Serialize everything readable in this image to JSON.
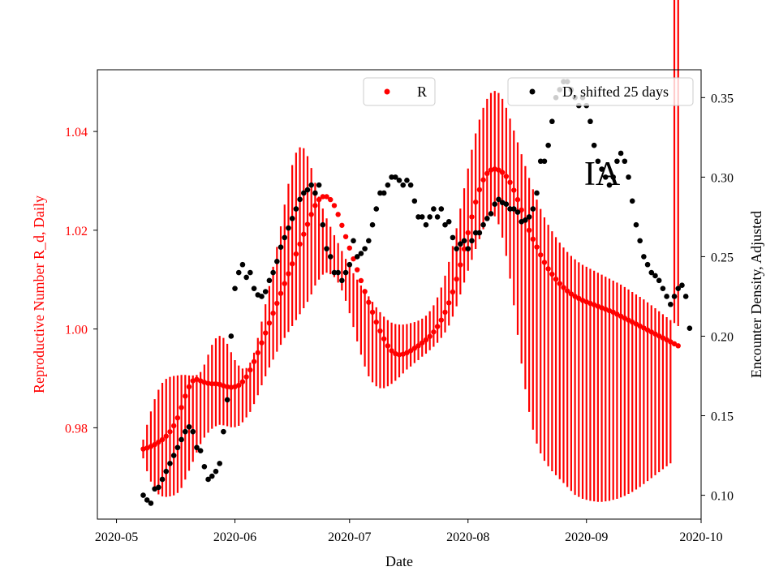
{
  "chart_data": {
    "type": "scatter",
    "title": "",
    "xlabel": "Date",
    "ylabel_left": "Reproductive Number R_d, Daily",
    "ylabel_right": "Encounter Density, Adjusted",
    "annotation": "IA",
    "colors": {
      "r": "#ff0000",
      "d": "#000000",
      "axis": "#000000"
    },
    "x_domain_days": [
      -5,
      153
    ],
    "x_ticks": [
      {
        "day": 0,
        "label": "2020-05"
      },
      {
        "day": 31,
        "label": "2020-06"
      },
      {
        "day": 61,
        "label": "2020-07"
      },
      {
        "day": 92,
        "label": "2020-08"
      },
      {
        "day": 123,
        "label": "2020-09"
      },
      {
        "day": 153,
        "label": "2020-10"
      }
    ],
    "y_left_range": [
      0.9615,
      1.0525
    ],
    "y_left_ticks": [
      {
        "value": 0.98,
        "label": "0.98"
      },
      {
        "value": 1.0,
        "label": "1.00"
      },
      {
        "value": 1.02,
        "label": "1.02"
      },
      {
        "value": 1.04,
        "label": "1.04"
      }
    ],
    "y_right_range": [
      0.085,
      0.3675
    ],
    "y_right_ticks": [
      {
        "value": 0.1,
        "label": "0.10"
      },
      {
        "value": 0.15,
        "label": "0.15"
      },
      {
        "value": 0.2,
        "label": "0.20"
      },
      {
        "value": 0.25,
        "label": "0.25"
      },
      {
        "value": 0.3,
        "label": "0.30"
      },
      {
        "value": 0.35,
        "label": "0.35"
      }
    ],
    "legend": [
      {
        "label": "R",
        "color": "#ff0000",
        "location": "upper-center"
      },
      {
        "label": "D, shifted 25 days",
        "color": "#000000",
        "location": "upper-right"
      }
    ],
    "series_R": {
      "name": "R",
      "axis": "left",
      "x_days": [
        7,
        8,
        9,
        10,
        11,
        12,
        13,
        14,
        15,
        16,
        17,
        18,
        19,
        20,
        21,
        22,
        23,
        24,
        25,
        26,
        27,
        28,
        29,
        30,
        31,
        32,
        33,
        34,
        35,
        36,
        37,
        38,
        39,
        40,
        41,
        42,
        43,
        44,
        45,
        46,
        47,
        48,
        49,
        50,
        51,
        52,
        53,
        54,
        55,
        56,
        57,
        58,
        59,
        60,
        61,
        62,
        63,
        64,
        65,
        66,
        67,
        68,
        69,
        70,
        71,
        72,
        73,
        74,
        75,
        76,
        77,
        78,
        79,
        80,
        81,
        82,
        83,
        84,
        85,
        86,
        87,
        88,
        89,
        90,
        91,
        92,
        93,
        94,
        95,
        96,
        97,
        98,
        99,
        100,
        101,
        102,
        103,
        104,
        105,
        106,
        107,
        108,
        109,
        110,
        111,
        112,
        113,
        114,
        115,
        116,
        117,
        118,
        119,
        120,
        121,
        122,
        123,
        124,
        125,
        126,
        127,
        128,
        129,
        130,
        131,
        132,
        133,
        134,
        135,
        136,
        137,
        138,
        139,
        140,
        141,
        142,
        143,
        144,
        145,
        146,
        147
      ],
      "values": [
        0.9757,
        0.9759,
        0.9762,
        0.9766,
        0.9771,
        0.9776,
        0.9783,
        0.9792,
        0.9804,
        0.982,
        0.9841,
        0.9864,
        0.9883,
        0.9895,
        0.9898,
        0.9895,
        0.9892,
        0.989,
        0.9889,
        0.9889,
        0.9888,
        0.9885,
        0.9883,
        0.9882,
        0.9883,
        0.9886,
        0.9893,
        0.9903,
        0.9917,
        0.9934,
        0.9952,
        0.9972,
        0.9992,
        1.0012,
        1.0032,
        1.0052,
        1.0072,
        1.0092,
        1.0112,
        1.0132,
        1.0152,
        1.0172,
        1.0192,
        1.0212,
        1.0232,
        1.025,
        1.0262,
        1.0268,
        1.0268,
        1.0262,
        1.025,
        1.0232,
        1.021,
        1.0187,
        1.0164,
        1.0142,
        1.012,
        1.0098,
        1.0076,
        1.0054,
        1.0034,
        1.0014,
        0.9996,
        0.998,
        0.9966,
        0.9956,
        0.995,
        0.9948,
        0.9949,
        0.9952,
        0.9956,
        0.9961,
        0.9966,
        0.9972,
        0.9978,
        0.9985,
        0.9994,
        1.0005,
        1.0018,
        1.0034,
        1.0053,
        1.0075,
        1.0101,
        1.013,
        1.0162,
        1.0195,
        1.0227,
        1.0257,
        1.0282,
        1.0302,
        1.0315,
        1.0322,
        1.0324,
        1.0322,
        1.0317,
        1.0309,
        1.0297,
        1.0281,
        1.0262,
        1.0241,
        1.022,
        1.02,
        1.0182,
        1.0166,
        1.015,
        1.0135,
        1.0122,
        1.0111,
        1.0101,
        1.0092,
        1.0084,
        1.0077,
        1.0071,
        1.0066,
        1.0062,
        1.0058,
        1.0055,
        1.0052,
        1.0049,
        1.0046,
        1.0043,
        1.004,
        1.0037,
        1.0034,
        1.003,
        1.0026,
        1.0022,
        1.0018,
        1.0014,
        1.001,
        1.0006,
        1.0002,
        0.9998,
        0.9994,
        0.999,
        0.9986,
        0.9982,
        0.9978,
        0.9974,
        0.997,
        0.9966
      ],
      "error_low": [
        0.9738,
        0.9712,
        0.9691,
        0.9674,
        0.9665,
        0.9661,
        0.966,
        0.9661,
        0.9663,
        0.9668,
        0.9678,
        0.9695,
        0.9713,
        0.9731,
        0.975,
        0.9767,
        0.978,
        0.979,
        0.9798,
        0.9803,
        0.9806,
        0.9805,
        0.9803,
        0.9801,
        0.9801,
        0.9804,
        0.9811,
        0.9821,
        0.9832,
        0.9848,
        0.9866,
        0.9886,
        0.9904,
        0.9922,
        0.9938,
        0.9954,
        0.9968,
        0.9982,
        0.9994,
        1.0006,
        1.0018,
        1.003,
        1.0042,
        1.0055,
        1.007,
        1.0088,
        1.01,
        1.011,
        1.0114,
        1.0111,
        1.0105,
        1.0094,
        1.0078,
        1.0057,
        1.0032,
        1.0004,
        0.9975,
        0.9948,
        0.9924,
        0.9904,
        0.9892,
        0.9884,
        0.988,
        0.988,
        0.9884,
        0.9889,
        0.9895,
        0.9902,
        0.991,
        0.9918,
        0.9924,
        0.9931,
        0.9937,
        0.9944,
        0.995,
        0.9957,
        0.9964,
        0.9972,
        0.9982,
        0.9993,
        1.0007,
        1.0025,
        1.0046,
        1.007,
        1.0094,
        1.0118,
        1.014,
        1.0162,
        1.0182,
        1.0202,
        1.0222,
        1.0232,
        1.0228,
        1.0212,
        1.0185,
        1.0148,
        1.0102,
        1.0048,
        0.9988,
        0.993,
        0.9878,
        0.9832,
        0.9796,
        0.9768,
        0.9748,
        0.9733,
        0.9722,
        0.9712,
        0.9704,
        0.9696,
        0.9688,
        0.968,
        0.9672,
        0.9664,
        0.966,
        0.9656,
        0.9654,
        0.9652,
        0.9651,
        0.965,
        0.965,
        0.9651,
        0.9652,
        0.9654,
        0.9656,
        0.9659,
        0.9662,
        0.9666,
        0.967,
        0.9675,
        0.968,
        0.9686,
        0.9692,
        0.9698,
        0.9704,
        0.971,
        0.9716,
        0.9722,
        0.9728
      ],
      "error_high": [
        0.9776,
        0.9806,
        0.9833,
        0.9858,
        0.9877,
        0.9891,
        0.9899,
        0.9903,
        0.9905,
        0.9906,
        0.9907,
        0.9907,
        0.9906,
        0.9906,
        0.9907,
        0.9913,
        0.9928,
        0.9948,
        0.9968,
        0.9981,
        0.9986,
        0.9982,
        0.997,
        0.9953,
        0.9937,
        0.9926,
        0.992,
        0.9921,
        0.9932,
        0.9952,
        0.9982,
        1.0015,
        1.005,
        1.0087,
        1.0126,
        1.0166,
        1.0208,
        1.0252,
        1.0294,
        1.0332,
        1.0357,
        1.0368,
        1.0366,
        1.035,
        1.0326,
        1.0296,
        1.0268,
        1.0244,
        1.0224,
        1.0207,
        1.019,
        1.0174,
        1.0158,
        1.0142,
        1.0127,
        1.0113,
        1.01,
        1.0088,
        1.0077,
        1.0066,
        1.0055,
        1.0044,
        1.0034,
        1.0025,
        1.0018,
        1.0013,
        1.001,
        1.0009,
        1.0009,
        1.001,
        1.0012,
        1.0014,
        1.0017,
        1.0021,
        1.0027,
        1.0036,
        1.0048,
        1.0064,
        1.0084,
        1.0108,
        1.0136,
        1.0168,
        1.0204,
        1.0244,
        1.0285,
        1.0325,
        1.0363,
        1.0396,
        1.0424,
        1.0448,
        1.0466,
        1.0478,
        1.0482,
        1.0478,
        1.0466,
        1.0448,
        1.0426,
        1.0402,
        1.0378,
        1.0354,
        1.033,
        1.0306,
        1.0283,
        1.0262,
        1.0243,
        1.0226,
        1.0211,
        1.0198,
        1.0186,
        1.0175,
        1.0165,
        1.0156,
        1.0148,
        1.0141,
        1.0135,
        1.013,
        1.0126,
        1.0122,
        1.0118,
        1.0114,
        1.011,
        1.0106,
        1.0102,
        1.0098,
        1.0094,
        1.009,
        1.0085,
        1.008,
        1.0075,
        1.007,
        1.0065,
        1.006,
        1.0054,
        1.0048,
        1.0042,
        1.0036,
        1.003,
        1.0024,
        1.0018,
        1.0012,
        1.0006
      ]
    },
    "series_D": {
      "name": "D, shifted 25 days",
      "axis": "right",
      "points": [
        [
          7,
          0.1
        ],
        [
          8,
          0.097
        ],
        [
          9,
          0.095
        ],
        [
          10,
          0.104
        ],
        [
          11,
          0.105
        ],
        [
          12,
          0.11
        ],
        [
          13,
          0.115
        ],
        [
          14,
          0.12
        ],
        [
          15,
          0.125
        ],
        [
          16,
          0.13
        ],
        [
          17,
          0.135
        ],
        [
          18,
          0.14
        ],
        [
          19,
          0.143
        ],
        [
          20,
          0.14
        ],
        [
          21,
          0.13
        ],
        [
          22,
          0.128
        ],
        [
          23,
          0.118
        ],
        [
          24,
          0.11
        ],
        [
          25,
          0.112
        ],
        [
          26,
          0.115
        ],
        [
          27,
          0.12
        ],
        [
          28,
          0.14
        ],
        [
          29,
          0.16
        ],
        [
          30,
          0.2
        ],
        [
          31,
          0.23
        ],
        [
          32,
          0.24
        ],
        [
          33,
          0.245
        ],
        [
          34,
          0.237
        ],
        [
          35,
          0.24
        ],
        [
          36,
          0.23
        ],
        [
          37,
          0.226
        ],
        [
          38,
          0.225
        ],
        [
          39,
          0.228
        ],
        [
          40,
          0.235
        ],
        [
          41,
          0.24
        ],
        [
          42,
          0.247
        ],
        [
          43,
          0.256
        ],
        [
          44,
          0.262
        ],
        [
          45,
          0.268
        ],
        [
          46,
          0.274
        ],
        [
          47,
          0.28
        ],
        [
          48,
          0.286
        ],
        [
          49,
          0.29
        ],
        [
          50,
          0.292
        ],
        [
          51,
          0.295
        ],
        [
          52,
          0.29
        ],
        [
          53,
          0.295
        ],
        [
          54,
          0.27
        ],
        [
          55,
          0.255
        ],
        [
          56,
          0.25
        ],
        [
          57,
          0.24
        ],
        [
          58,
          0.24
        ],
        [
          59,
          0.235
        ],
        [
          60,
          0.24
        ],
        [
          61,
          0.245
        ],
        [
          62,
          0.26
        ],
        [
          63,
          0.25
        ],
        [
          64,
          0.252
        ],
        [
          65,
          0.255
        ],
        [
          66,
          0.26
        ],
        [
          67,
          0.27
        ],
        [
          68,
          0.28
        ],
        [
          69,
          0.29
        ],
        [
          70,
          0.29
        ],
        [
          71,
          0.295
        ],
        [
          72,
          0.3
        ],
        [
          73,
          0.3
        ],
        [
          74,
          0.298
        ],
        [
          75,
          0.295
        ],
        [
          76,
          0.298
        ],
        [
          77,
          0.295
        ],
        [
          78,
          0.285
        ],
        [
          79,
          0.275
        ],
        [
          80,
          0.275
        ],
        [
          81,
          0.27
        ],
        [
          82,
          0.275
        ],
        [
          83,
          0.28
        ],
        [
          84,
          0.275
        ],
        [
          85,
          0.28
        ],
        [
          86,
          0.27
        ],
        [
          87,
          0.272
        ],
        [
          88,
          0.262
        ],
        [
          89,
          0.255
        ],
        [
          90,
          0.258
        ],
        [
          91,
          0.26
        ],
        [
          92,
          0.255
        ],
        [
          93,
          0.26
        ],
        [
          94,
          0.265
        ],
        [
          95,
          0.265
        ],
        [
          96,
          0.27
        ],
        [
          97,
          0.274
        ],
        [
          98,
          0.277
        ],
        [
          99,
          0.283
        ],
        [
          100,
          0.286
        ],
        [
          101,
          0.284
        ],
        [
          102,
          0.283
        ],
        [
          103,
          0.28
        ],
        [
          104,
          0.28
        ],
        [
          105,
          0.278
        ],
        [
          106,
          0.272
        ],
        [
          107,
          0.273
        ],
        [
          108,
          0.275
        ],
        [
          109,
          0.28
        ],
        [
          110,
          0.29
        ],
        [
          111,
          0.31
        ],
        [
          112,
          0.31
        ],
        [
          113,
          0.32
        ],
        [
          114,
          0.335
        ],
        [
          115,
          0.35
        ],
        [
          116,
          0.355
        ],
        [
          117,
          0.36
        ],
        [
          118,
          0.36
        ],
        [
          119,
          0.355
        ],
        [
          120,
          0.35
        ],
        [
          121,
          0.345
        ],
        [
          122,
          0.35
        ],
        [
          123,
          0.345
        ],
        [
          124,
          0.335
        ],
        [
          125,
          0.32
        ],
        [
          126,
          0.31
        ],
        [
          127,
          0.305
        ],
        [
          128,
          0.3
        ],
        [
          129,
          0.295
        ],
        [
          130,
          0.3
        ],
        [
          131,
          0.31
        ],
        [
          132,
          0.315
        ],
        [
          133,
          0.31
        ],
        [
          134,
          0.3
        ],
        [
          135,
          0.285
        ],
        [
          136,
          0.27
        ],
        [
          137,
          0.26
        ],
        [
          138,
          0.25
        ],
        [
          139,
          0.245
        ],
        [
          140,
          0.24
        ],
        [
          141,
          0.238
        ],
        [
          142,
          0.235
        ],
        [
          143,
          0.23
        ],
        [
          144,
          0.225
        ],
        [
          145,
          0.22
        ],
        [
          146,
          0.225
        ],
        [
          147,
          0.23
        ],
        [
          148,
          0.232
        ],
        [
          149,
          0.225
        ],
        [
          150,
          0.205
        ]
      ]
    }
  }
}
